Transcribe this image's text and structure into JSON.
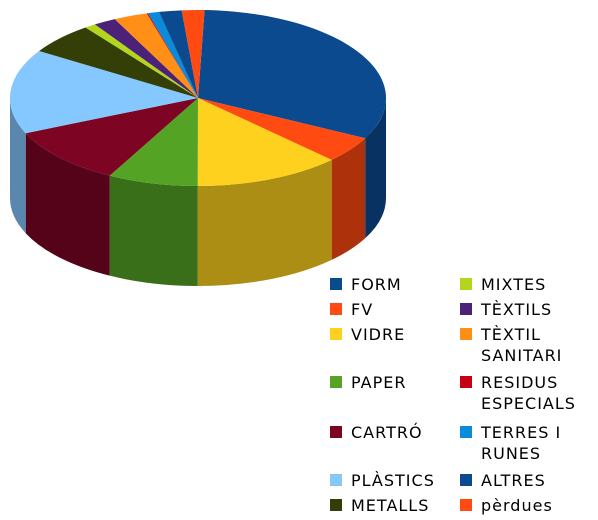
{
  "chart_data": {
    "type": "pie",
    "style": "3d",
    "legend_position": "bottom-right",
    "slices": [
      {
        "label": "FORM",
        "value": 33,
        "color": "#0b4a8f"
      },
      {
        "label": "FV",
        "value": 5,
        "color": "#ff4a12"
      },
      {
        "label": "VIDRE",
        "value": 13,
        "color": "#ffd11f"
      },
      {
        "label": "PAPER",
        "value": 8,
        "color": "#55a325"
      },
      {
        "label": "CARTRÓ",
        "value": 11,
        "color": "#7d0423"
      },
      {
        "label": "PLÀSTICS",
        "value": 16,
        "color": "#85c7ff"
      },
      {
        "label": "METALLS",
        "value": 6,
        "color": "#333f06"
      },
      {
        "label": "MIXTES",
        "value": 1,
        "color": "#b3d61c"
      },
      {
        "label": "TÈXTILS",
        "value": 2,
        "color": "#4c2278"
      },
      {
        "label": "TÈXTIL SANITARI",
        "value": 3,
        "color": "#ff8f17"
      },
      {
        "label": "RESIDUS ESPECIALS",
        "value": 0.1,
        "color": "#c40012"
      },
      {
        "label": "TERRES I RUNES",
        "value": 1,
        "color": "#0a8ad8"
      },
      {
        "label": "ALTRES",
        "value": 2,
        "color": "#0b4a8f"
      },
      {
        "label": "pèrdues",
        "value": 2,
        "color": "#ff4a12"
      }
    ]
  },
  "legend": {
    "items": [
      {
        "label": "FORM",
        "color": "#0b4a8f"
      },
      {
        "label": "FV",
        "color": "#ff4a12"
      },
      {
        "label": "VIDRE",
        "color": "#ffd11f"
      },
      {
        "label": "PAPER",
        "color": "#55a325"
      },
      {
        "label": "CARTRÓ",
        "color": "#7d0423"
      },
      {
        "label": "PLÀSTICS",
        "color": "#85c7ff"
      },
      {
        "label": "METALLS",
        "color": "#333f06"
      },
      {
        "label": "MIXTES",
        "color": "#b3d61c"
      },
      {
        "label": "TÈXTILS",
        "color": "#4c2278"
      },
      {
        "label": "TÈXTIL\nSANITARI",
        "color": "#ff8f17"
      },
      {
        "label": "RESIDUS\nESPECIALS",
        "color": "#c40012"
      },
      {
        "label": "TERRES I\nRUNES",
        "color": "#0a8ad8"
      },
      {
        "label": "ALTRES",
        "color": "#0b4a8f"
      },
      {
        "label": "pèrdues",
        "color": "#ff4a12"
      }
    ]
  }
}
